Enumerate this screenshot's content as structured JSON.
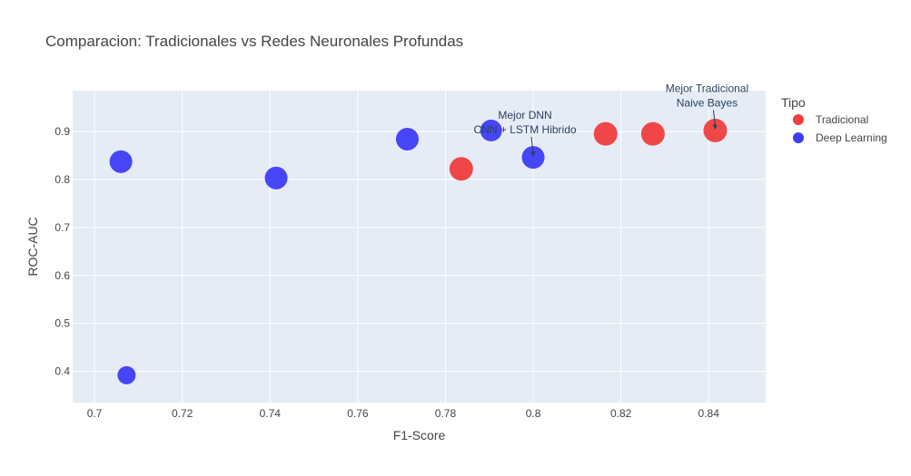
{
  "chart_data": {
    "type": "scatter",
    "title": "Comparacion: Tradicionales vs Redes Neuronales Profundas",
    "xlabel": "F1-Score",
    "ylabel": "ROC-AUC",
    "xlim": [
      0.695,
      0.853
    ],
    "ylim": [
      0.335,
      0.985
    ],
    "xticks": [
      0.7,
      0.72,
      0.74,
      0.76,
      0.78,
      0.8,
      0.82,
      0.84
    ],
    "xtick_labels": [
      "0.7",
      "0.72",
      "0.74",
      "0.76",
      "0.78",
      "0.8",
      "0.82",
      "0.84"
    ],
    "yticks": [
      0.4,
      0.5,
      0.6,
      0.7,
      0.8,
      0.9
    ],
    "ytick_labels": [
      "0.4",
      "0.5",
      "0.6",
      "0.7",
      "0.8",
      "0.9"
    ],
    "grid": true,
    "legend": {
      "title": "Tipo",
      "placement": "top-right"
    },
    "series": [
      {
        "name": "Tradicional",
        "color": "#EF3E3E",
        "points": [
          {
            "x": 0.7836,
            "y": 0.822
          },
          {
            "x": 0.8165,
            "y": 0.895
          },
          {
            "x": 0.8273,
            "y": 0.895
          },
          {
            "x": 0.8415,
            "y": 0.902
          }
        ]
      },
      {
        "name": "Deep Learning",
        "color": "#3D3DF5",
        "points": [
          {
            "x": 0.706,
            "y": 0.837,
            "size": "large"
          },
          {
            "x": 0.7073,
            "y": 0.392,
            "size": "small"
          },
          {
            "x": 0.7414,
            "y": 0.803,
            "size": "large"
          },
          {
            "x": 0.7713,
            "y": 0.884,
            "size": "large"
          },
          {
            "x": 0.7904,
            "y": 0.902,
            "size": "medium"
          },
          {
            "x": 0.8,
            "y": 0.846,
            "size": "large"
          }
        ]
      }
    ],
    "annotations": [
      {
        "lines": [
          "Mejor DNN",
          "CNN + LSTM Hibrido"
        ],
        "x": 0.8,
        "y": 0.846
      },
      {
        "lines": [
          "Mejor Tradicional",
          "Naive Bayes"
        ],
        "x": 0.8415,
        "y": 0.902
      }
    ]
  },
  "colors": {
    "plot_background": "#E5ECF6",
    "grid": "#ffffff",
    "text": "#444444",
    "annotation_text": "#2a3f5f"
  }
}
